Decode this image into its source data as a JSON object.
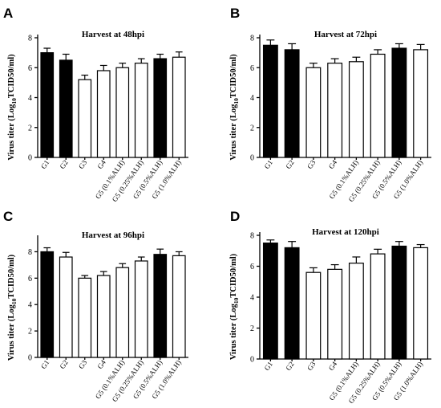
{
  "chart_data": [
    {
      "panel": "A",
      "type": "bar",
      "title": "Harvest at 48hpi",
      "ylabel": "Virus titer (Log10TCID50/ml)",
      "ylabel_parts": [
        "Virus titer (Log",
        "10",
        "TCID50/ml)"
      ],
      "ylim": [
        0,
        8
      ],
      "yticks": [
        0,
        2,
        4,
        6,
        8
      ],
      "categories": [
        "G1",
        "G2",
        "G3",
        "G4",
        "G5 (0.1%ALH)",
        "G5 (0.25%ALH)",
        "G5 (0.5%ALH)",
        "G5 (1.0%ALH)"
      ],
      "values": [
        7.0,
        6.5,
        5.2,
        5.8,
        6.0,
        6.3,
        6.6,
        6.7
      ],
      "errors": [
        0.3,
        0.4,
        0.3,
        0.35,
        0.3,
        0.3,
        0.3,
        0.35
      ],
      "filled": [
        true,
        true,
        false,
        false,
        false,
        false,
        true,
        false
      ]
    },
    {
      "panel": "B",
      "type": "bar",
      "title": "Harvest at 72hpi",
      "ylabel": "Virus titer (Log10TCID50/ml)",
      "ylabel_parts": [
        "Virus titer (Log",
        "10",
        "TCID50/ml)"
      ],
      "ylim": [
        0,
        8
      ],
      "yticks": [
        0,
        2,
        4,
        6,
        8
      ],
      "categories": [
        "G1",
        "G2",
        "G3",
        "G4",
        "G5 (0.1%ALH)",
        "G5 (0.25%ALH)",
        "G5 (0.5%ALH)",
        "G5 (1.0%ALH)"
      ],
      "values": [
        7.5,
        7.2,
        6.0,
        6.3,
        6.4,
        6.9,
        7.3,
        7.2
      ],
      "errors": [
        0.35,
        0.4,
        0.3,
        0.3,
        0.3,
        0.3,
        0.3,
        0.35
      ],
      "filled": [
        true,
        true,
        false,
        false,
        false,
        false,
        true,
        false
      ]
    },
    {
      "panel": "C",
      "type": "bar",
      "title": "Harvest at 96hpi",
      "ylabel": "Virus titer (Log10TCID50/ml)",
      "ylabel_parts": [
        "Virus titer (Log",
        "10",
        "TCID50/ml)"
      ],
      "ylim": [
        0,
        9
      ],
      "yticks": [
        0,
        2,
        4,
        6,
        8
      ],
      "categories": [
        "G1",
        "G2",
        "G3",
        "G4",
        "G5 (0.1%ALH)",
        "G5 (0.25%ALH)",
        "G5 (0.5%ALH)",
        "G5 (1.0%ALH)"
      ],
      "values": [
        8.0,
        7.6,
        6.0,
        6.2,
        6.8,
        7.3,
        7.8,
        7.7
      ],
      "errors": [
        0.3,
        0.35,
        0.2,
        0.3,
        0.3,
        0.3,
        0.4,
        0.3
      ],
      "filled": [
        true,
        false,
        false,
        false,
        false,
        false,
        true,
        false
      ]
    },
    {
      "panel": "D",
      "type": "bar",
      "title": "Harvest at 120hpi",
      "ylabel": "Virus titer (Log10TCID50/ml)",
      "ylabel_parts": [
        "Virus titer (Log",
        "10",
        "TCID50/ml)"
      ],
      "ylim": [
        0,
        8
      ],
      "yticks": [
        0,
        2,
        4,
        6,
        8
      ],
      "categories": [
        "G1",
        "G2",
        "G3",
        "G4",
        "G5 (0.1%ALH)",
        "G5 (0.25%ALH)",
        "G5 (0.5%ALH)",
        "G5 (1.0%ALH)"
      ],
      "values": [
        7.5,
        7.2,
        5.6,
        5.8,
        6.2,
        6.8,
        7.3,
        7.2
      ],
      "errors": [
        0.2,
        0.4,
        0.3,
        0.3,
        0.4,
        0.3,
        0.3,
        0.2
      ],
      "filled": [
        true,
        true,
        false,
        false,
        false,
        false,
        true,
        false
      ]
    }
  ],
  "colors": {
    "filled": "#000000",
    "open": "#ffffff",
    "stroke": "#000000"
  }
}
